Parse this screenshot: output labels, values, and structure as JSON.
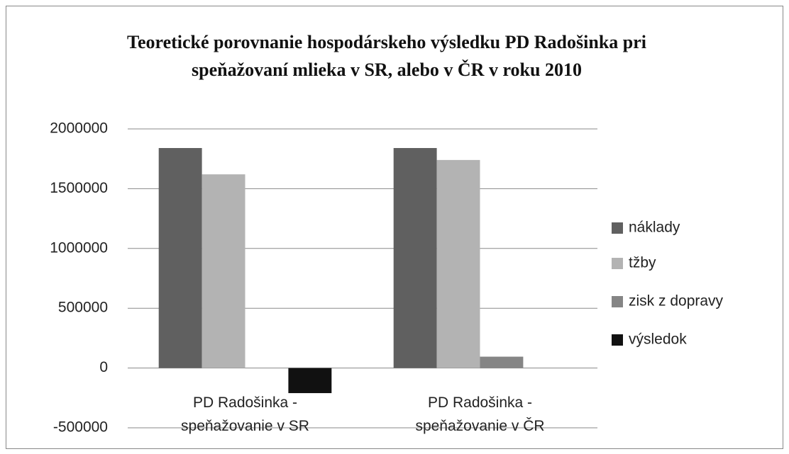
{
  "chart_data": {
    "type": "bar",
    "title": "Teoretické porovnanie hospodárskeho výsledku PD Radošinka pri speňažovaní mlieka v SR, alebo v ČR v roku 2010",
    "categories": [
      "PD Radošinka - speňažovanie v SR",
      "PD Radošinka - speňažovanie v ČR"
    ],
    "series": [
      {
        "name": "náklady",
        "color": "#606060",
        "values": [
          1840000,
          1840000
        ]
      },
      {
        "name": "tžby",
        "color": "#b3b3b3",
        "values": [
          1620000,
          1740000
        ]
      },
      {
        "name": "zisk z dopravy",
        "color": "#858585",
        "values": [
          0,
          95000
        ]
      },
      {
        "name": "výsledok",
        "color": "#111111",
        "values": [
          -210000,
          0
        ]
      }
    ],
    "ylim": [
      -500000,
      2000000
    ],
    "yticks": [
      -500000,
      0,
      500000,
      1000000,
      1500000,
      2000000
    ],
    "grid": true,
    "legend": "right"
  }
}
